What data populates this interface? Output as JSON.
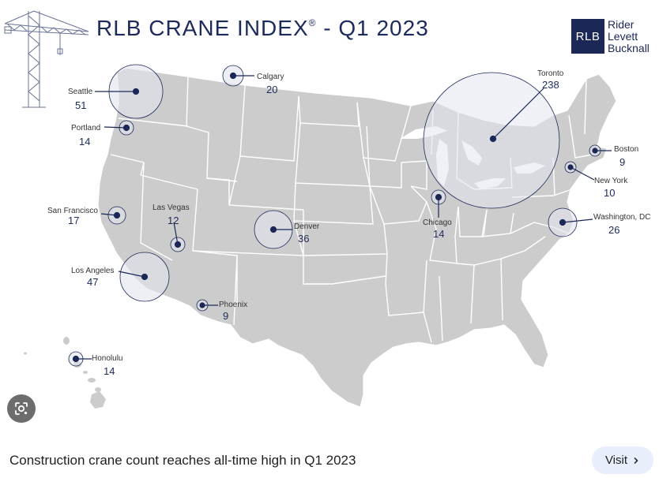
{
  "header": {
    "title": "RLB CRANE INDEX",
    "title_mark": "®",
    "title_suffix": " - Q1 2023"
  },
  "logo": {
    "mark": "RLB",
    "line1": "Rider",
    "line2": "Levett",
    "line3": "Bucknall"
  },
  "cities": [
    {
      "id": "seattle",
      "name": "Seattle",
      "count": "51"
    },
    {
      "id": "calgary",
      "name": "Calgary",
      "count": "20"
    },
    {
      "id": "portland",
      "name": "Portland",
      "count": "14"
    },
    {
      "id": "toronto",
      "name": "Toronto",
      "count": "238"
    },
    {
      "id": "boston",
      "name": "Boston",
      "count": "9"
    },
    {
      "id": "new-york",
      "name": "New York",
      "count": "10"
    },
    {
      "id": "san-francisco",
      "name": "San Francisco",
      "count": "17"
    },
    {
      "id": "las-vegas",
      "name": "Las Vegas",
      "count": "12"
    },
    {
      "id": "denver",
      "name": "Denver",
      "count": "36"
    },
    {
      "id": "chicago",
      "name": "Chicago",
      "count": "14"
    },
    {
      "id": "washington-dc",
      "name": "Washington, DC",
      "count": "26"
    },
    {
      "id": "los-angeles",
      "name": "Los Angeles",
      "count": "47"
    },
    {
      "id": "phoenix",
      "name": "Phoenix",
      "count": "9"
    },
    {
      "id": "honolulu",
      "name": "Honolulu",
      "count": "14"
    }
  ],
  "footer": {
    "caption": "Construction crane count reaches all-time high in Q1 2023",
    "visit_label": "Visit",
    "visit_icon": "chevron-right-icon"
  },
  "colors": {
    "navy": "#1b2857",
    "land": "#cccccc",
    "bubble": "#e3e5ee"
  },
  "lens_icon": "google-lens-icon"
}
